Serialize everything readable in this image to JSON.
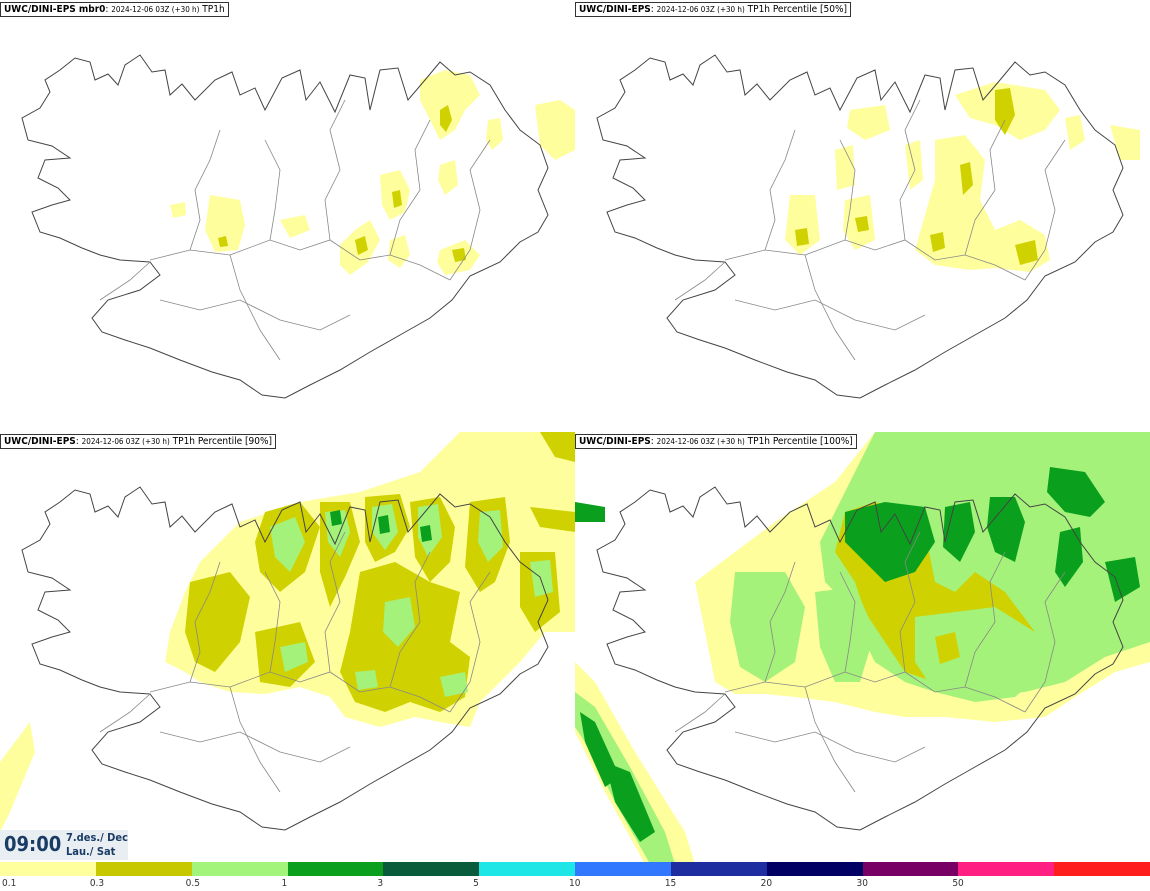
{
  "panels": [
    {
      "model": "UWC/DINI-EPS mbr0",
      "run": "2024-12-06 03Z (+30 h)",
      "field": "TP1h"
    },
    {
      "model": "UWC/DINI-EPS",
      "run": "2024-12-06 03Z (+30 h)",
      "field": "TP1h Percentile [50%]"
    },
    {
      "model": "UWC/DINI-EPS",
      "run": "2024-12-06 03Z (+30 h)",
      "field": "TP1h Percentile [90%]"
    },
    {
      "model": "UWC/DINI-EPS",
      "run": "2024-12-06 03Z (+30 h)",
      "field": "TP1h Percentile [100%]"
    }
  ],
  "valid_time": {
    "time": "09:00",
    "date": "7.des./ Dec",
    "weekday": "Lau./ Sat"
  },
  "legend": {
    "colors": [
      "#ffff9e",
      "#c8c800",
      "#a2f57a",
      "#0aa01e",
      "#0a5a3c",
      "#1ee6e6",
      "#3278ff",
      "#1e2da0",
      "#000064",
      "#780064",
      "#ff1e82",
      "#ff1e1e"
    ],
    "labels": [
      "0.1",
      "0.3",
      "0.5",
      "1",
      "3",
      "5",
      "10",
      "15",
      "20",
      "30",
      "50"
    ]
  },
  "precip_colors": {
    "light": "#fffe9c",
    "med": "#cfd200",
    "heavy": "#a4f27a",
    "vheavy": "#0aa01e"
  }
}
